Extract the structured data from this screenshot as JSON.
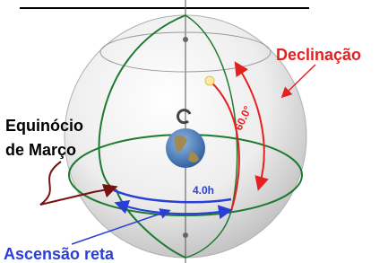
{
  "labels": {
    "declination": "Declinação",
    "declination_angle": "60.0°",
    "equinox_line1": "Equinócio",
    "equinox_line2": "de Março",
    "right_ascension_hours": "4.0h",
    "right_ascension": "Ascensão reta"
  }
}
